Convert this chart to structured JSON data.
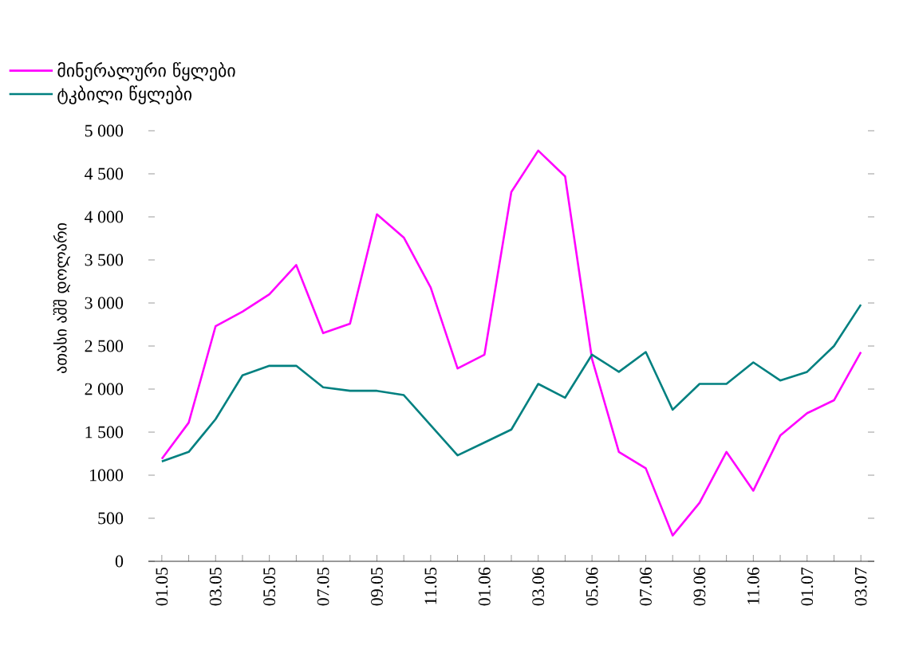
{
  "chart_data": {
    "type": "line",
    "ylabel": "ათასი აშშ დოლარი",
    "categories": [
      "01.05",
      null,
      "03.05",
      null,
      "05.05",
      null,
      "07.05",
      null,
      "09.05",
      null,
      "11.05",
      null,
      "01.06",
      null,
      "03.06",
      null,
      "05.06",
      null,
      "07.06",
      null,
      "09.06",
      null,
      "11.06",
      null,
      "01.07",
      null,
      "03.07"
    ],
    "series": [
      {
        "name": "მინერალური წყლები",
        "color": "#ff00ff",
        "values": [
          1190,
          1610,
          2730,
          2900,
          3100,
          3440,
          2650,
          2760,
          4030,
          3760,
          3180,
          2240,
          2400,
          4290,
          4770,
          4470,
          2350,
          1270,
          1080,
          300,
          680,
          1270,
          820,
          1460,
          1720,
          1870,
          2430
        ]
      },
      {
        "name": "ტკბილი წყლები",
        "color": "#008080",
        "values": [
          1160,
          1270,
          1650,
          2160,
          2270,
          2270,
          2020,
          1980,
          1980,
          1930,
          1580,
          1230,
          1380,
          1530,
          2060,
          1900,
          2400,
          2200,
          2430,
          1760,
          2060,
          2060,
          2310,
          2100,
          2200,
          2500,
          2980
        ]
      }
    ],
    "ylim": [
      0,
      5000
    ],
    "yticks": [
      0,
      500,
      {
        "value": 1000,
        "label": "1000"
      },
      {
        "value": 1500,
        "label": "1 500"
      },
      {
        "value": 2000,
        "label": "2 000"
      },
      {
        "value": 2500,
        "label": "2 500"
      },
      {
        "value": 3000,
        "label": "3 000"
      },
      {
        "value": 3500,
        "label": "3 500"
      },
      {
        "value": 4000,
        "label": "4 000"
      },
      {
        "value": 4500,
        "label": "4 500"
      },
      {
        "value": 5000,
        "label": "5 000"
      }
    ],
    "legend": "top left",
    "grid": false,
    "marker": "none",
    "line_style": "solid"
  }
}
